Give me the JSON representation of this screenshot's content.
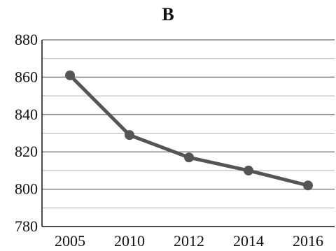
{
  "chart_data": {
    "type": "line",
    "title": "B",
    "categories": [
      "2005",
      "2010",
      "2012",
      "2014",
      "2016"
    ],
    "series": [
      {
        "values": [
          861,
          829,
          817,
          810,
          802
        ]
      }
    ],
    "ylim": [
      780,
      880
    ],
    "yticks": [
      780,
      800,
      820,
      840,
      860,
      880
    ],
    "grid": true,
    "colors": {
      "line": "#555555",
      "marker": "#555555",
      "grid_major": "#888888",
      "grid_minor": "#b5b5b5",
      "axis": "#111111"
    }
  }
}
